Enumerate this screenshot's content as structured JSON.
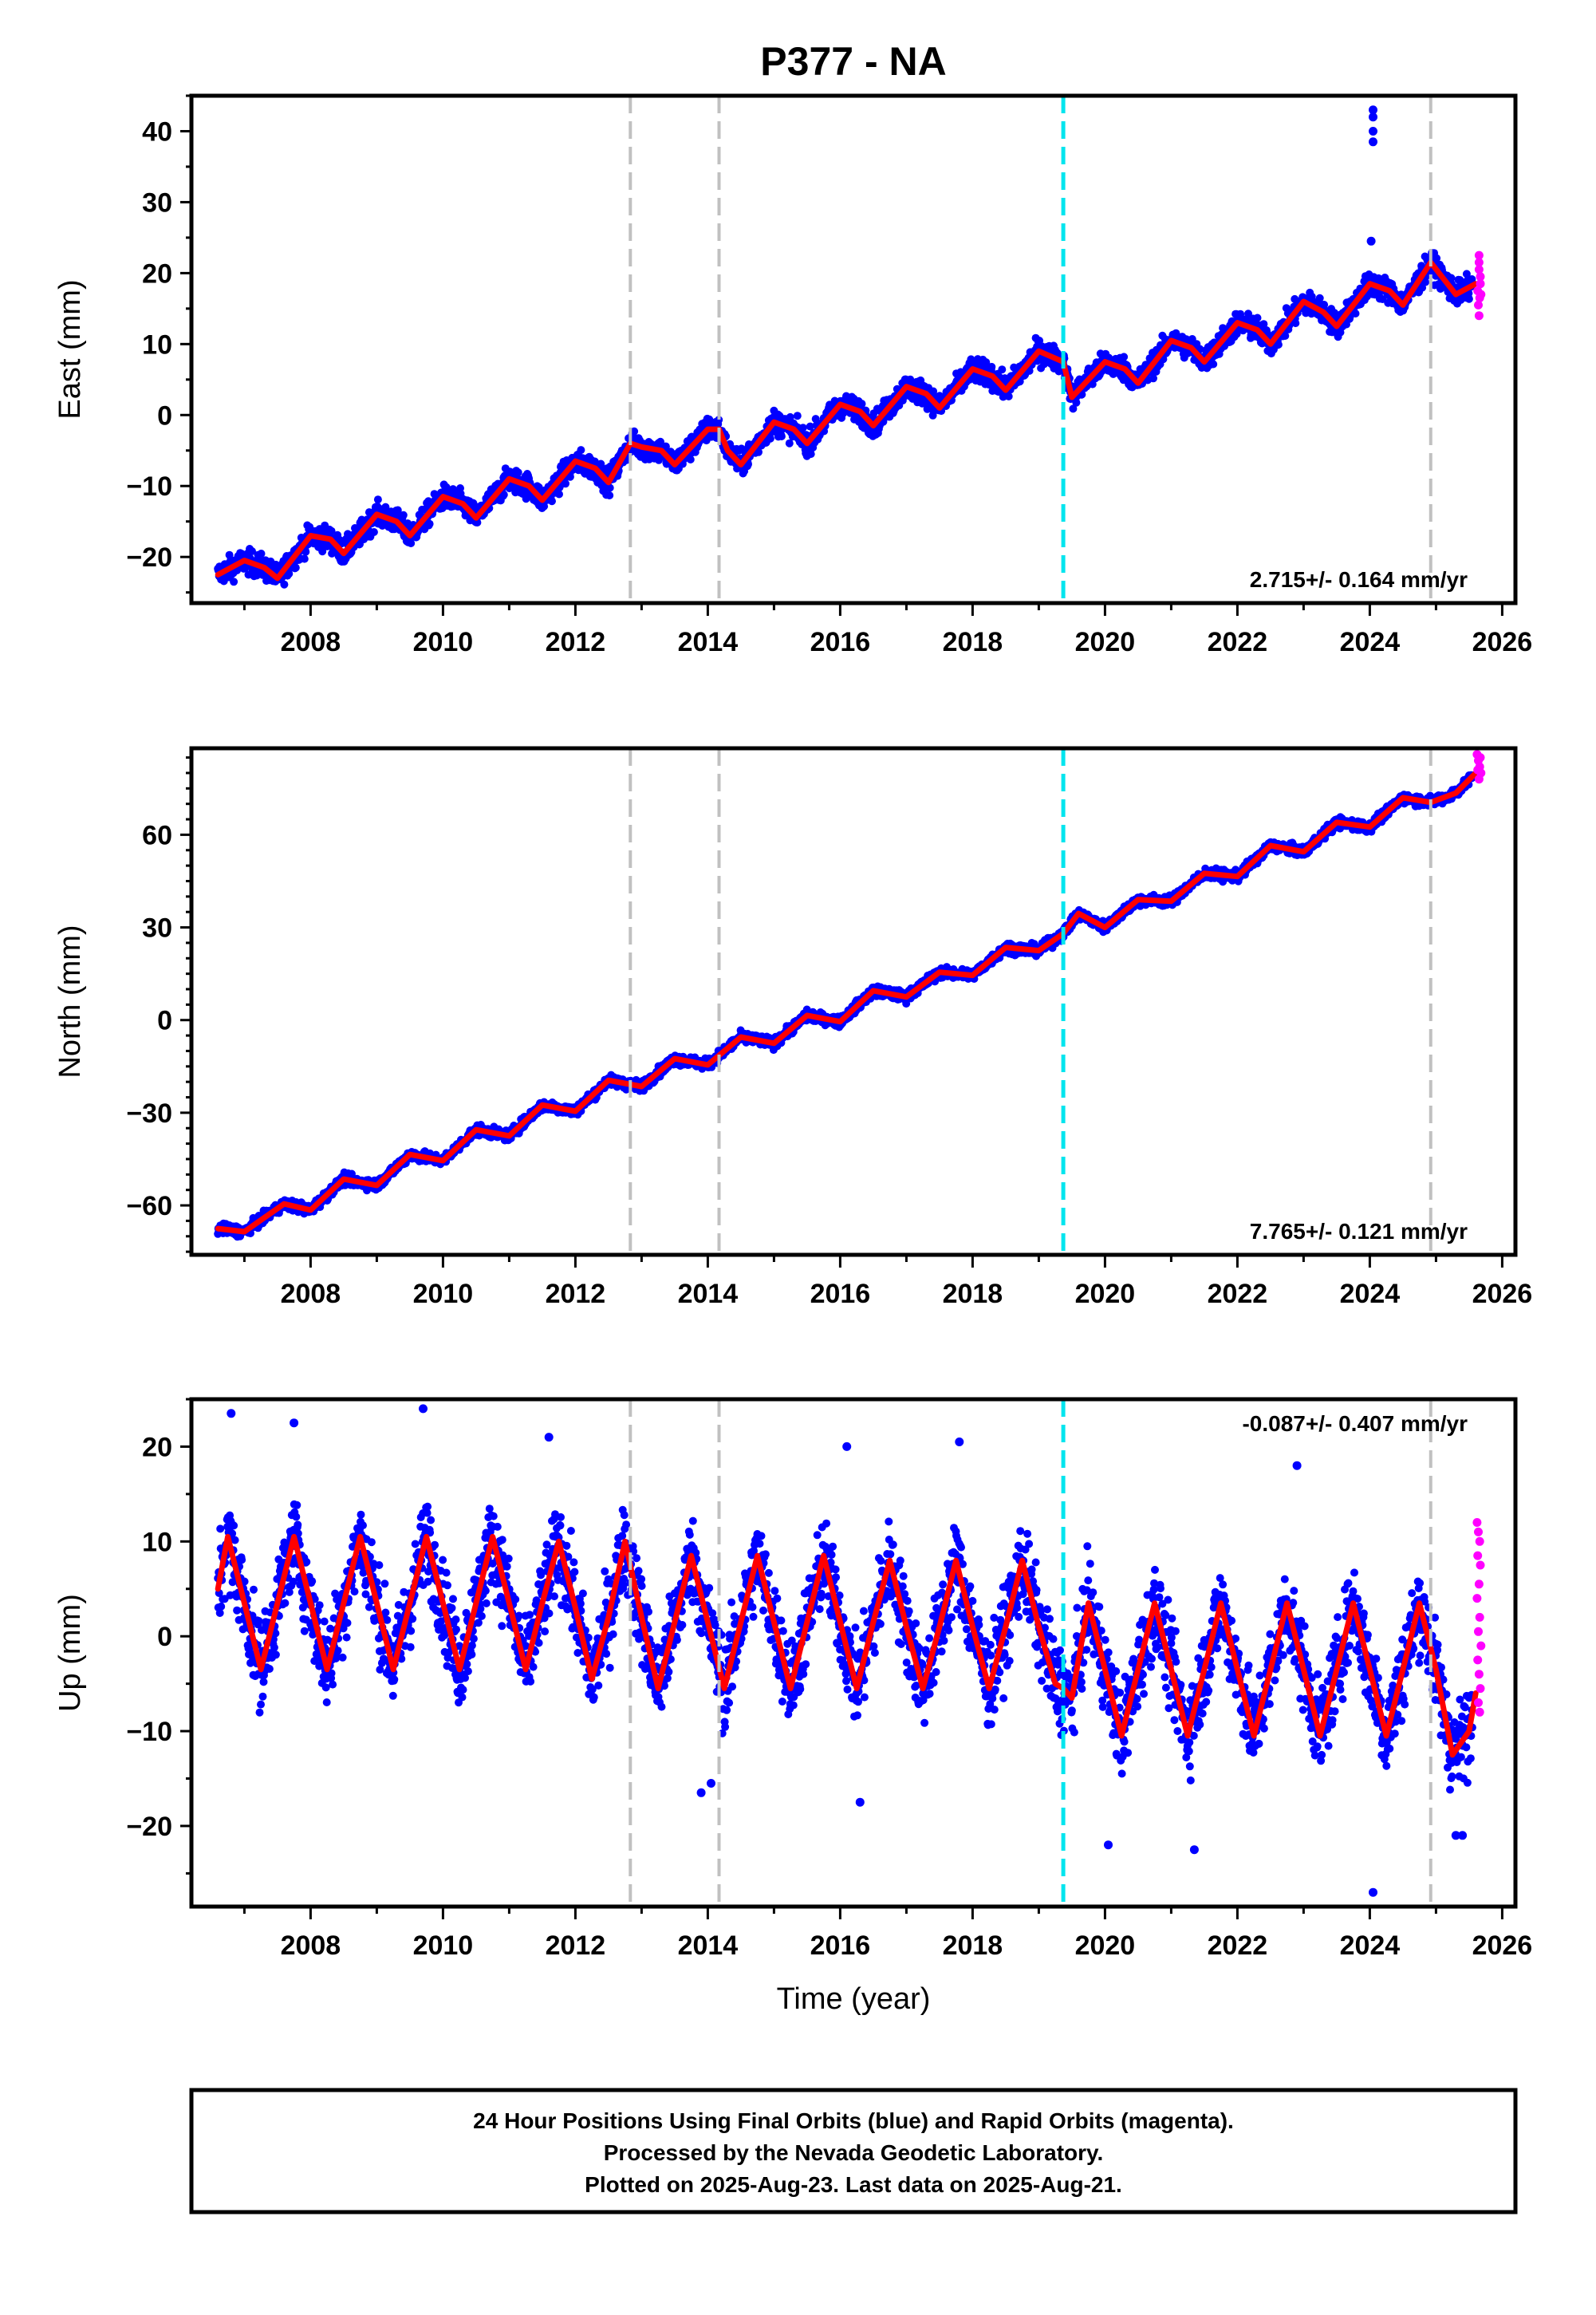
{
  "chart_data": {
    "type": "scatter",
    "title": "P377 - NA",
    "xlabel": "Time (year)",
    "xlim": [
      2006.2,
      2026.2
    ],
    "x_ticks": [
      "2008",
      "2010",
      "2012",
      "2014",
      "2016",
      "2018",
      "2020",
      "2022",
      "2024",
      "2026"
    ],
    "vertical_lines": {
      "gray_dashed": [
        2012.83,
        2014.17,
        2024.92
      ],
      "cyan_dashed": [
        2019.37
      ]
    },
    "colors": {
      "final_orbits": "#0000ff",
      "rapid_orbits": "#ff00ff",
      "model_fit": "#ff0000",
      "gray_event": "#c0c0c0",
      "cyan_event": "#00e5ee"
    },
    "panels": [
      {
        "ylabel": "East (mm)",
        "ylim": [
          -26.5,
          45
        ],
        "y_ticks": [
          "40",
          "30",
          "20",
          "10",
          "0",
          "−10",
          "−20"
        ],
        "y_tick_values": [
          40,
          30,
          20,
          10,
          0,
          -10,
          -20
        ],
        "rate_label": "2.715+/- 0.164 mm/yr",
        "rate_position": "bottom-right",
        "series": [
          {
            "name": "model",
            "x": [
              2006.6,
              2007.0,
              2007.3,
              2007.5,
              2008.0,
              2008.3,
              2008.5,
              2009.0,
              2009.3,
              2009.5,
              2010.0,
              2010.3,
              2010.5,
              2011.0,
              2011.3,
              2011.5,
              2012.0,
              2012.3,
              2012.5,
              2012.83,
              2013.0,
              2013.3,
              2013.5,
              2014.0,
              2014.17,
              2014.3,
              2014.5,
              2015.0,
              2015.3,
              2015.5,
              2016.0,
              2016.3,
              2016.5,
              2017.0,
              2017.3,
              2017.5,
              2018.0,
              2018.3,
              2018.5,
              2019.0,
              2019.37,
              2019.5,
              2020.0,
              2020.3,
              2020.5,
              2021.0,
              2021.3,
              2021.5,
              2022.0,
              2022.3,
              2022.5,
              2023.0,
              2023.3,
              2023.5,
              2024.0,
              2024.3,
              2024.5,
              2024.92,
              2025.3,
              2025.6
            ],
            "y": [
              -22.5,
              -20.5,
              -21.5,
              -23.0,
              -17.0,
              -17.5,
              -19.5,
              -14.0,
              -15.0,
              -17.0,
              -11.5,
              -12.5,
              -14.5,
              -9.0,
              -10.0,
              -12.0,
              -6.5,
              -7.5,
              -9.5,
              -4.0,
              -4.5,
              -5.0,
              -7.0,
              -2.0,
              -2.0,
              -5.0,
              -7.0,
              -1.0,
              -2.0,
              -4.0,
              1.5,
              0.5,
              -1.5,
              4.0,
              3.0,
              1.0,
              6.5,
              5.5,
              3.5,
              9.0,
              7.5,
              2.5,
              7.5,
              6.5,
              4.5,
              10.5,
              9.5,
              7.5,
              13.0,
              12.0,
              10.0,
              16.0,
              14.5,
              12.5,
              18.5,
              17.5,
              15.5,
              21.5,
              17.0,
              18.5
            ]
          },
          {
            "name": "final",
            "x": [
              2024.05,
              2024.05,
              2024.05,
              2024.05,
              2024.02
            ],
            "y": [
              43.0,
              42.0,
              40.0,
              38.5,
              24.5
            ]
          },
          {
            "name": "rapid",
            "x": [
              2025.65,
              2025.65,
              2025.65,
              2025.67,
              2025.67,
              2025.63,
              2025.66,
              2025.64,
              2025.68,
              2025.65
            ],
            "y": [
              22.5,
              21.5,
              20.5,
              19.5,
              18.5,
              17.5,
              16.5,
              15.5,
              17.0,
              14.0
            ]
          }
        ]
      },
      {
        "ylabel": "North (mm)",
        "ylim": [
          -76,
          88
        ],
        "y_ticks": [
          "60",
          "30",
          "0",
          "−30",
          "−60"
        ],
        "y_tick_values": [
          60,
          30,
          0,
          -30,
          -60
        ],
        "rate_label": "7.765+/- 0.121 mm/yr",
        "rate_position": "bottom-right",
        "series": [
          {
            "name": "model",
            "x": [
              2006.6,
              2007.0,
              2007.3,
              2007.6,
              2008.0,
              2008.5,
              2009.0,
              2009.5,
              2010.0,
              2010.5,
              2011.0,
              2011.5,
              2012.0,
              2012.5,
              2013.0,
              2013.5,
              2014.0,
              2014.5,
              2015.0,
              2015.5,
              2016.0,
              2016.5,
              2017.0,
              2017.5,
              2018.0,
              2018.5,
              2019.0,
              2019.37,
              2019.6,
              2020.0,
              2020.5,
              2021.0,
              2021.5,
              2022.0,
              2022.5,
              2023.0,
              2023.5,
              2024.0,
              2024.5,
              2024.92,
              2025.3,
              2025.6
            ],
            "y": [
              -67.5,
              -68.5,
              -64.0,
              -59.5,
              -61.5,
              -51.5,
              -53.5,
              -43.5,
              -45.5,
              -35.5,
              -37.5,
              -27.5,
              -29.5,
              -19.5,
              -21.5,
              -12.5,
              -14.5,
              -5.5,
              -7.5,
              1.5,
              -0.5,
              9.5,
              7.5,
              15.5,
              14.5,
              23.5,
              22.5,
              28.0,
              34.5,
              30.0,
              39.0,
              38.5,
              47.5,
              46.5,
              56.5,
              54.5,
              64.0,
              62.5,
              72.0,
              70.5,
              73.5,
              80.0
            ]
          },
          {
            "name": "rapid",
            "x": [
              2025.62,
              2025.64,
              2025.66,
              2025.68,
              2025.65,
              2025.63,
              2025.67
            ],
            "y": [
              86.0,
              84.0,
              82.0,
              80.0,
              78.0,
              81.0,
              85.0
            ]
          }
        ]
      },
      {
        "ylabel": "Up (mm)",
        "ylim": [
          -28.5,
          25
        ],
        "y_ticks": [
          "20",
          "10",
          "0",
          "−10",
          "−20"
        ],
        "y_tick_values": [
          20,
          10,
          0,
          -10,
          -20
        ],
        "rate_label": "-0.087+/- 0.407 mm/yr",
        "rate_position": "top-right",
        "series": [
          {
            "name": "model",
            "x": [
              2006.6,
              2006.75,
              2007.0,
              2007.25,
              2007.5,
              2007.75,
              2008.0,
              2008.25,
              2008.5,
              2008.75,
              2009.0,
              2009.25,
              2009.5,
              2009.75,
              2010.0,
              2010.25,
              2010.5,
              2010.75,
              2011.0,
              2011.25,
              2011.5,
              2011.75,
              2012.0,
              2012.25,
              2012.5,
              2012.75,
              2013.0,
              2013.25,
              2013.5,
              2013.75,
              2014.0,
              2014.25,
              2014.5,
              2014.75,
              2015.0,
              2015.25,
              2015.5,
              2015.75,
              2016.0,
              2016.25,
              2016.5,
              2016.75,
              2017.0,
              2017.25,
              2017.5,
              2017.75,
              2018.0,
              2018.25,
              2018.5,
              2018.75,
              2019.0,
              2019.25,
              2019.37,
              2019.5,
              2019.75,
              2020.0,
              2020.25,
              2020.5,
              2020.75,
              2021.0,
              2021.25,
              2021.5,
              2021.75,
              2022.0,
              2022.25,
              2022.5,
              2022.75,
              2023.0,
              2023.25,
              2023.5,
              2023.75,
              2024.0,
              2024.25,
              2024.5,
              2024.75,
              2025.0,
              2025.25,
              2025.5,
              2025.6
            ],
            "y": [
              5.0,
              10.5,
              3.5,
              -3.5,
              3.5,
              10.5,
              3.5,
              -3.5,
              3.5,
              10.5,
              3.5,
              -3.5,
              3.5,
              10.5,
              3.5,
              -3.5,
              3.5,
              10.5,
              3.5,
              -3.5,
              3.5,
              10.0,
              3.0,
              -4.5,
              2.0,
              10.0,
              2.0,
              -5.5,
              1.5,
              8.5,
              1.5,
              -5.5,
              1.5,
              8.5,
              1.5,
              -5.5,
              1.5,
              8.5,
              1.5,
              -5.5,
              1.5,
              8.0,
              1.0,
              -5.5,
              1.0,
              8.0,
              1.0,
              -5.5,
              1.0,
              8.0,
              1.0,
              -5.0,
              -5.5,
              -6.5,
              3.5,
              -3.5,
              -10.5,
              -3.5,
              3.5,
              -3.5,
              -10.5,
              -3.5,
              3.5,
              -3.5,
              -10.5,
              -3.5,
              3.5,
              -3.5,
              -10.5,
              -3.5,
              3.5,
              -3.5,
              -10.5,
              -3.5,
              3.5,
              -3.5,
              -12.5,
              -10.0,
              -6.0
            ]
          },
          {
            "name": "final",
            "x": [
              2006.8,
              2009.7,
              2007.75,
              2011.6,
              2017.8,
              2016.1,
              2014.05,
              2013.9,
              2016.3,
              2020.05,
              2021.35,
              2024.05,
              2022.9,
              2025.3,
              2025.4
            ],
            "y": [
              23.5,
              24.0,
              22.5,
              21.0,
              20.5,
              20.0,
              -15.5,
              -16.5,
              -17.5,
              -22.0,
              -22.5,
              -27.0,
              18.0,
              -21.0,
              -21.0
            ]
          },
          {
            "name": "rapid",
            "x": [
              2025.62,
              2025.64,
              2025.66,
              2025.63,
              2025.67,
              2025.65,
              2025.62,
              2025.66,
              2025.64,
              2025.68,
              2025.63,
              2025.65,
              2025.67,
              2025.64,
              2025.66
            ],
            "y": [
              12.0,
              11.0,
              10.0,
              8.5,
              7.5,
              5.5,
              4.0,
              2.0,
              0.5,
              -1.0,
              -2.5,
              -4.0,
              -5.5,
              -7.0,
              -8.0
            ]
          }
        ]
      }
    ],
    "caption": [
      "24 Hour Positions Using Final Orbits (blue) and Rapid Orbits (magenta).",
      "Processed by the Nevada Geodetic Laboratory.",
      "Plotted on 2025-Aug-23. Last data on 2025-Aug-21."
    ]
  }
}
